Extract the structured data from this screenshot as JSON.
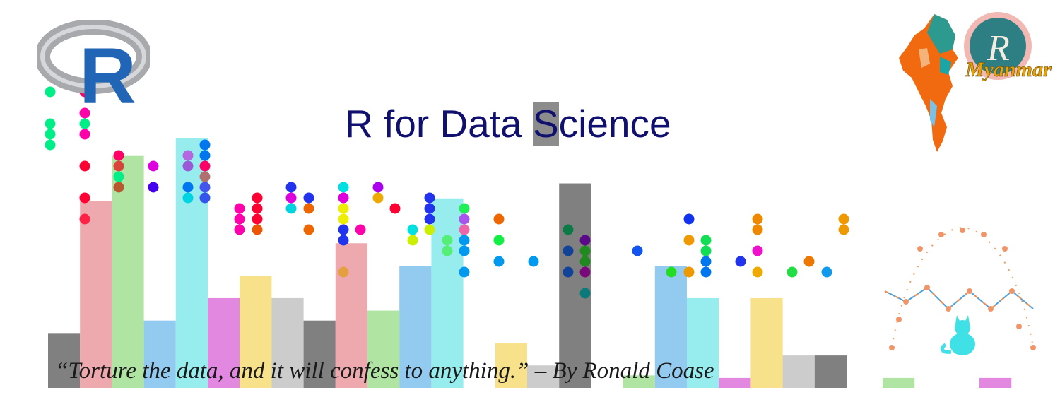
{
  "title": {
    "pre": "R for Data ",
    "highlight": "S",
    "post": "cience",
    "color": "#10106e"
  },
  "quote": "“Torture the data, and it will confess to anything.” – By Ronald Coase",
  "logos": {
    "r_logo": {
      "letter": "R",
      "ring_color": "#a8a9ad",
      "letter_color": "#2165b6"
    },
    "myanmar_logo": {
      "letter": "R",
      "banner": "Myanmar",
      "circle_color": "#2e7f84",
      "ring_color": "#f2b9b4"
    }
  },
  "palette": {
    "gray": "#808080",
    "pink": "#eda9ad",
    "green": "#b0e4a3",
    "blue": "#93caf0",
    "cyan": "#97ecee",
    "magenta": "#e288e0",
    "yellow": "#f7e18b",
    "light_gray": "#cccccc"
  },
  "bars": [
    {
      "color": "gray",
      "height": 0.22
    },
    {
      "color": "pink",
      "height": 0.75
    },
    {
      "color": "green",
      "height": 0.93
    },
    {
      "color": "blue",
      "height": 0.27
    },
    {
      "color": "cyan",
      "height": 1.0
    },
    {
      "color": "magenta",
      "height": 0.36
    },
    {
      "color": "yellow",
      "height": 0.45
    },
    {
      "color": "light_gray",
      "height": 0.36
    },
    {
      "color": "gray",
      "height": 0.27
    },
    {
      "color": "pink",
      "height": 0.58
    },
    {
      "color": "green",
      "height": 0.31
    },
    {
      "color": "blue",
      "height": 0.49
    },
    {
      "color": "cyan",
      "height": 0.76
    },
    {
      "color": "none",
      "height": 0
    },
    {
      "color": "yellow",
      "height": 0.18
    },
    {
      "color": "light_gray",
      "height": 0.09
    },
    {
      "color": "gray",
      "height": 0.82
    },
    {
      "color": "none",
      "height": 0
    },
    {
      "color": "green",
      "height": 0.05
    },
    {
      "color": "blue",
      "height": 0.49
    },
    {
      "color": "cyan",
      "height": 0.36
    },
    {
      "color": "magenta",
      "height": 0.04
    },
    {
      "color": "yellow",
      "height": 0.36
    },
    {
      "color": "light_gray",
      "height": 0.13
    },
    {
      "color": "gray",
      "height": 0.13
    }
  ],
  "side_bars": [
    {
      "color": "green",
      "height": 0.04
    },
    {
      "color": "magenta",
      "height": 0.04
    }
  ],
  "dot_columns": [
    {
      "dots": [
        [
          "#00ee88",
          130
        ],
        [
          "#00ee88",
          175
        ],
        [
          "#00ee88",
          190
        ],
        [
          "#00ee88",
          205
        ]
      ]
    },
    {
      "dots": [
        [
          "#ff0066",
          130
        ],
        [
          "#ff00aa",
          160
        ],
        [
          "#00ee88",
          175
        ],
        [
          "#ff00aa",
          190
        ],
        [
          "#ff0033",
          235
        ],
        [
          "#ff0033",
          280
        ],
        [
          "#ff2244",
          310
        ]
      ]
    },
    {
      "dots": [
        [
          "#ff0066",
          220
        ],
        [
          "#d9443a",
          235
        ],
        [
          "#00ee88",
          250
        ],
        [
          "#b8582e",
          265
        ]
      ]
    },
    {
      "dots": [
        [
          "#dd00dd",
          235
        ],
        [
          "#4400ee",
          265
        ]
      ]
    },
    {
      "dots": [
        [
          "#b367e0",
          220
        ],
        [
          "#9a5ad8",
          235
        ],
        [
          "#00d4e0",
          280
        ],
        [
          "#0077ee",
          265
        ]
      ]
    },
    {
      "dots": [
        [
          "#0077ee",
          205
        ],
        [
          "#0077ee",
          220
        ],
        [
          "#ff0066",
          235
        ],
        [
          "#b07070",
          250
        ],
        [
          "#4455ee",
          265
        ],
        [
          "#3355ee",
          280
        ]
      ]
    },
    {
      "dots": [
        [
          "#ff00aa",
          295
        ],
        [
          "#ff00aa",
          310
        ],
        [
          "#ff00aa",
          325
        ]
      ]
    },
    {
      "dots": [
        [
          "#ff0033",
          280
        ],
        [
          "#ff0033",
          295
        ],
        [
          "#ff0033",
          310
        ],
        [
          "#ee5500",
          325
        ]
      ]
    },
    {
      "dots": [
        [
          "#2233ee",
          265
        ],
        [
          "#dd00dd",
          280
        ],
        [
          "#00d4e0",
          295
        ]
      ]
    },
    {
      "dots": [
        [
          "#2233ee",
          280
        ],
        [
          "#ee6600",
          295
        ],
        [
          "#ee6600",
          325
        ]
      ]
    },
    {
      "dots": [
        [
          "#00e0e0",
          265
        ],
        [
          "#dd00dd",
          280
        ],
        [
          "#eeee00",
          295
        ],
        [
          "#eeee00",
          310
        ],
        [
          "#2233ee",
          325
        ],
        [
          "#2233ee",
          340
        ],
        [
          "#e4a040",
          385
        ]
      ]
    },
    {
      "dots": [
        [
          "#ff00aa",
          325
        ]
      ]
    },
    {
      "dots": [
        [
          "#aa00ee",
          265
        ],
        [
          "#eeaa00",
          280
        ]
      ]
    },
    {
      "dots": [
        [
          "#ff0033",
          295
        ]
      ]
    },
    {
      "dots": [
        [
          "#00e0e0",
          325
        ],
        [
          "#ccee00",
          340
        ]
      ]
    },
    {
      "dots": [
        [
          "#2233ee",
          280
        ],
        [
          "#2233ee",
          295
        ],
        [
          "#2233ee",
          310
        ],
        [
          "#ccee00",
          325
        ]
      ]
    },
    {
      "dots": [
        [
          "#55ee77",
          340
        ],
        [
          "#55ee77",
          355
        ]
      ]
    },
    {
      "dots": [
        [
          "#22ee55",
          295
        ],
        [
          "#a855ee",
          310
        ],
        [
          "#ee66aa",
          325
        ],
        [
          "#0099ee",
          340
        ],
        [
          "#0099ee",
          355
        ],
        [
          "#0099ee",
          385
        ]
      ]
    },
    {
      "dots": [
        [
          "#ee6600",
          310
        ],
        [
          "#11ee44",
          340
        ],
        [
          "#0099ee",
          370
        ]
      ]
    },
    {
      "dots": [
        [
          "#0099ee",
          370
        ]
      ]
    },
    {
      "dots": [
        [
          "#0b7a44",
          325
        ],
        [
          "#114499",
          355
        ],
        [
          "#114499",
          385
        ]
      ]
    },
    {
      "dots": [
        [
          "#5a0a88",
          340
        ],
        [
          "#208a20",
          355
        ],
        [
          "#208a20",
          370
        ],
        [
          "#7a0a7a",
          385
        ],
        [
          "#0a7a7a",
          415
        ]
      ]
    },
    {
      "dots": [
        [
          "#1155ee",
          355
        ]
      ]
    },
    {
      "dots": [
        [
          "#22dd22",
          385
        ]
      ]
    },
    {
      "dots": [
        [
          "#1133ee",
          310
        ],
        [
          "#ee9900",
          340
        ],
        [
          "#ee9900",
          385
        ]
      ]
    },
    {
      "dots": [
        [
          "#11dd55",
          340
        ],
        [
          "#11dd55",
          355
        ],
        [
          "#0077ee",
          370
        ],
        [
          "#0077ee",
          385
        ]
      ]
    },
    {
      "dots": [
        [
          "#2233ee",
          370
        ]
      ]
    },
    {
      "dots": [
        [
          "#ee8800",
          310
        ],
        [
          "#ee8800",
          325
        ],
        [
          "#ee11cc",
          355
        ],
        [
          "#eeaa00",
          385
        ]
      ]
    },
    {
      "dots": [
        [
          "#22dd44",
          385
        ]
      ]
    },
    {
      "dots": [
        [
          "#ee7700",
          370
        ]
      ]
    },
    {
      "dots": [
        [
          "#1199ee",
          385
        ]
      ]
    },
    {
      "dots": [
        [
          "#ee9900",
          310
        ],
        [
          "#ee9900",
          325
        ]
      ]
    }
  ]
}
